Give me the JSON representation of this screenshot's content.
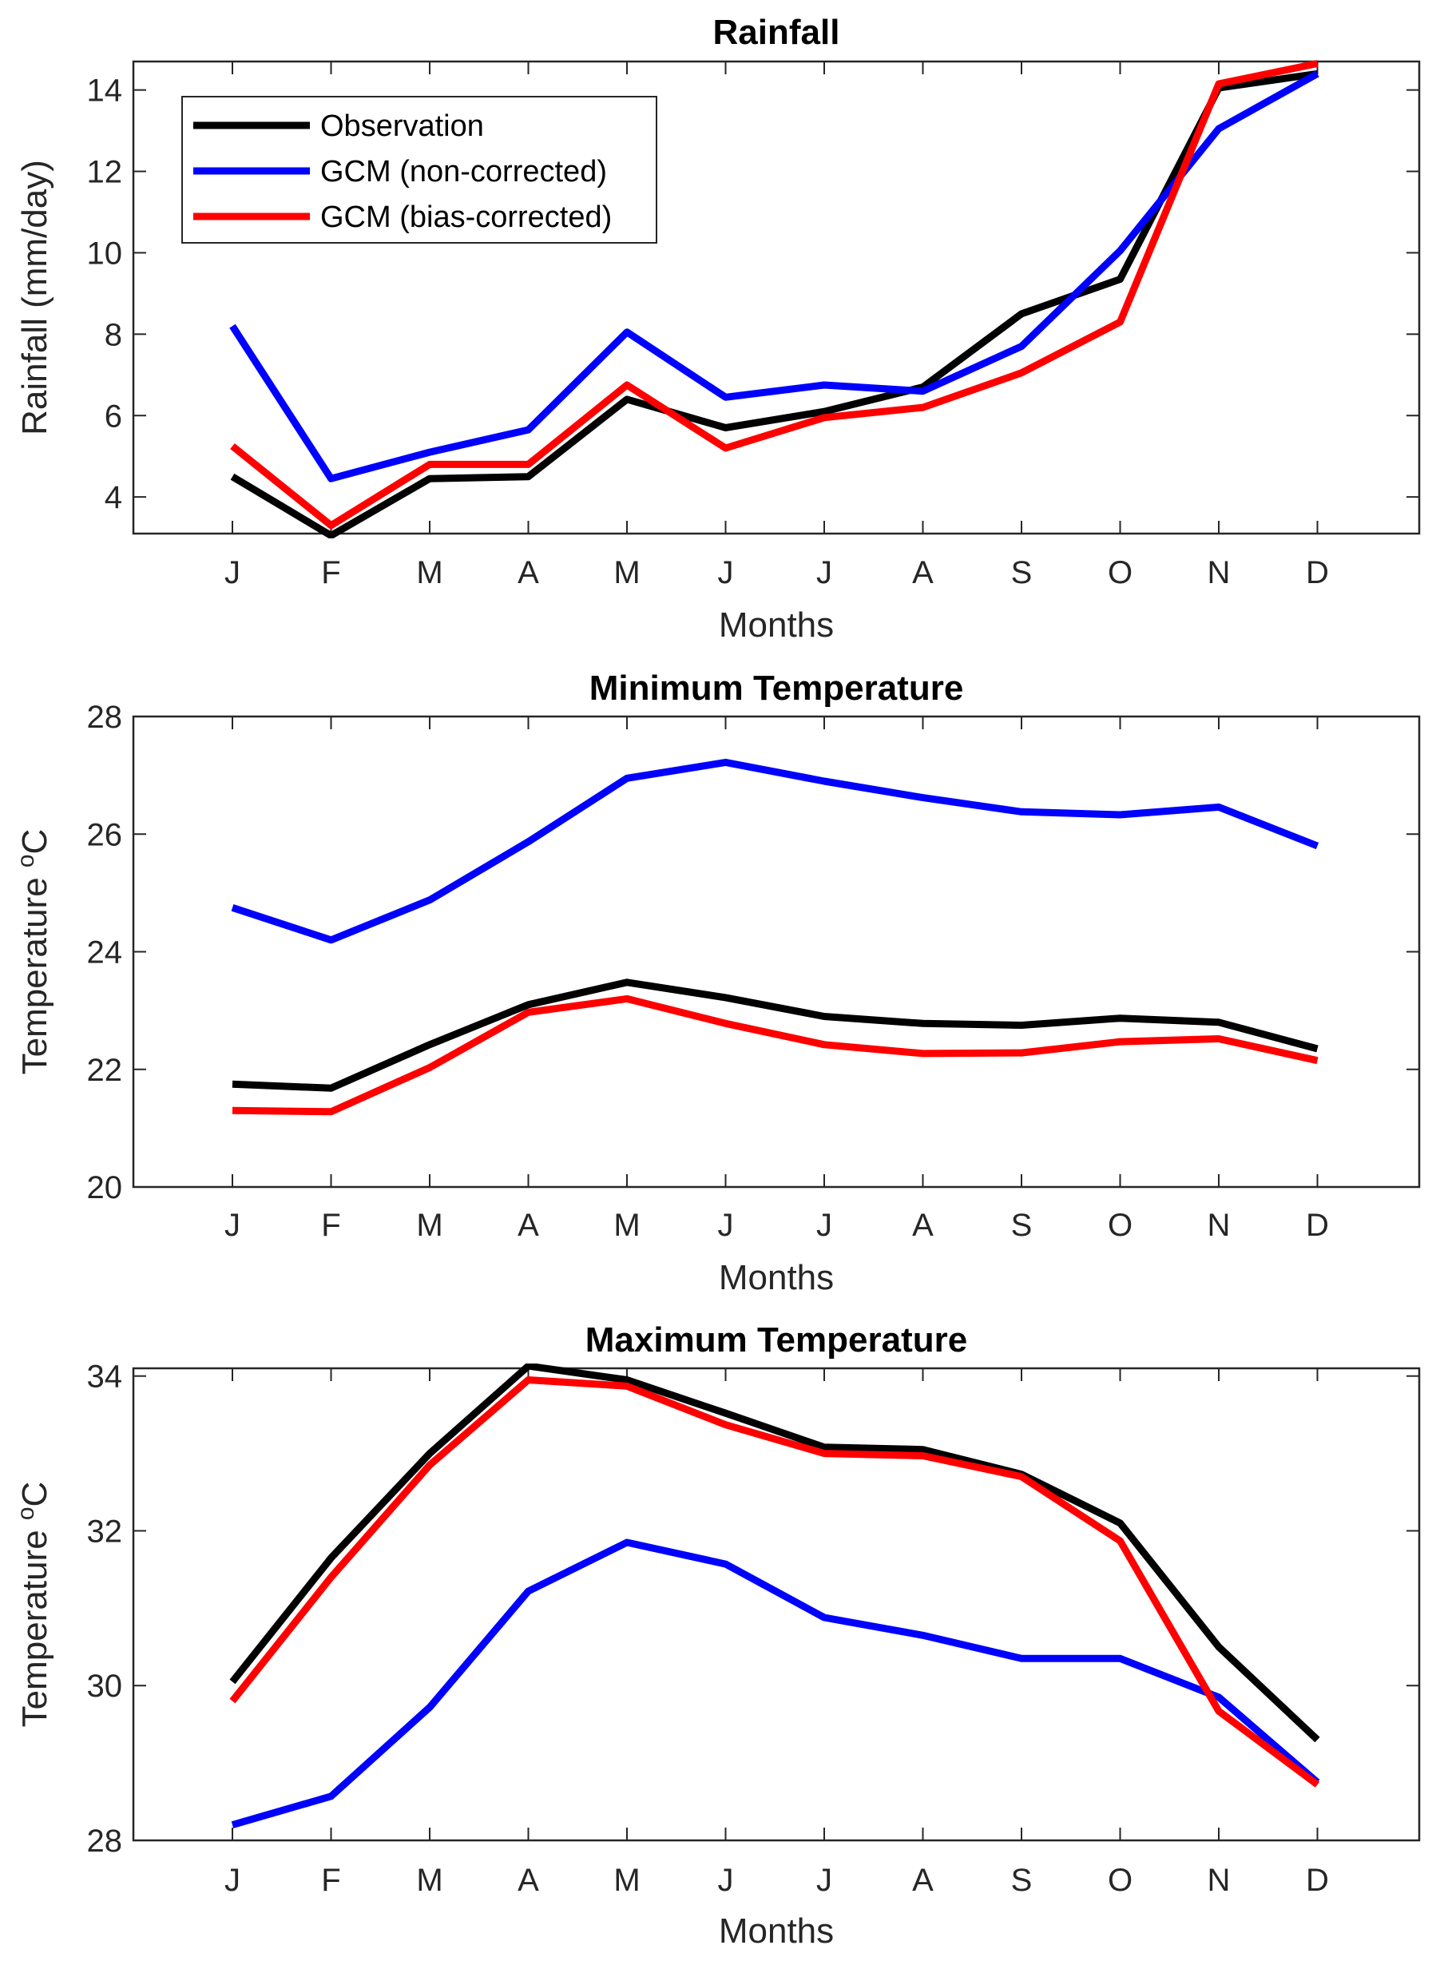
{
  "chart_data": [
    {
      "type": "line",
      "title": "Rainfall",
      "xlabel": "Months",
      "ylabel": "Rainfall (mm/day)",
      "ylim": [
        3.1,
        14.7
      ],
      "yticks": [
        4,
        6,
        8,
        10,
        12,
        14
      ],
      "categories": [
        "J",
        "F",
        "M",
        "A",
        "M",
        "J",
        "J",
        "A",
        "S",
        "O",
        "N",
        "D"
      ],
      "legend_position": "top-left",
      "series": [
        {
          "name": "Observation",
          "color": "#000000",
          "values": [
            4.5,
            3.05,
            4.45,
            4.5,
            6.4,
            5.7,
            6.1,
            6.7,
            8.5,
            9.35,
            14.05,
            14.4
          ]
        },
        {
          "name": "GCM (non-corrected)",
          "color": "#0000FF",
          "values": [
            8.2,
            4.45,
            5.1,
            5.65,
            8.05,
            6.45,
            6.75,
            6.6,
            7.7,
            10.05,
            13.05,
            14.4
          ]
        },
        {
          "name": "GCM (bias-corrected)",
          "color": "#FF0000",
          "values": [
            5.25,
            3.3,
            4.8,
            4.8,
            6.75,
            5.2,
            5.95,
            6.2,
            7.05,
            8.3,
            14.15,
            14.65
          ]
        }
      ]
    },
    {
      "type": "line",
      "title": "Minimum Temperature",
      "xlabel": "Months",
      "ylabel": "Temperature",
      "ylabel_unit_sup": "o",
      "ylabel_unit": "C",
      "ylim": [
        20,
        28
      ],
      "yticks": [
        20,
        22,
        24,
        26,
        28
      ],
      "categories": [
        "J",
        "F",
        "M",
        "A",
        "M",
        "J",
        "J",
        "A",
        "S",
        "O",
        "N",
        "D"
      ],
      "series": [
        {
          "name": "Observation",
          "color": "#000000",
          "values": [
            21.75,
            21.68,
            22.42,
            23.1,
            23.48,
            23.22,
            22.9,
            22.78,
            22.75,
            22.87,
            22.8,
            22.35
          ]
        },
        {
          "name": "GCM (non-corrected)",
          "color": "#0000FF",
          "values": [
            24.75,
            24.2,
            24.88,
            25.87,
            26.95,
            27.22,
            26.9,
            26.62,
            26.38,
            26.33,
            26.46,
            25.8
          ]
        },
        {
          "name": "GCM (bias-corrected)",
          "color": "#FF0000",
          "values": [
            21.3,
            21.28,
            22.03,
            22.97,
            23.2,
            22.78,
            22.42,
            22.27,
            22.28,
            22.47,
            22.52,
            22.15
          ]
        }
      ]
    },
    {
      "type": "line",
      "title": "Maximum Temperature",
      "xlabel": "Months",
      "ylabel": "Temperature",
      "ylabel_unit_sup": "o",
      "ylabel_unit": "C",
      "ylim": [
        28,
        34.1
      ],
      "yticks": [
        28,
        30,
        32,
        34
      ],
      "categories": [
        "J",
        "F",
        "M",
        "A",
        "M",
        "J",
        "J",
        "A",
        "S",
        "O",
        "N",
        "D"
      ],
      "series": [
        {
          "name": "Observation",
          "color": "#000000",
          "values": [
            30.05,
            31.65,
            33.0,
            34.13,
            33.95,
            33.52,
            33.08,
            33.05,
            32.73,
            32.1,
            30.5,
            29.3
          ]
        },
        {
          "name": "GCM (non-corrected)",
          "color": "#0000FF",
          "values": [
            28.2,
            28.57,
            29.72,
            31.22,
            31.85,
            31.57,
            30.88,
            30.65,
            30.35,
            30.35,
            29.85,
            28.75
          ]
        },
        {
          "name": "GCM (bias-corrected)",
          "color": "#FF0000",
          "values": [
            29.8,
            31.4,
            32.85,
            33.95,
            33.87,
            33.37,
            33.0,
            32.97,
            32.7,
            31.87,
            29.67,
            28.72
          ]
        }
      ]
    }
  ]
}
